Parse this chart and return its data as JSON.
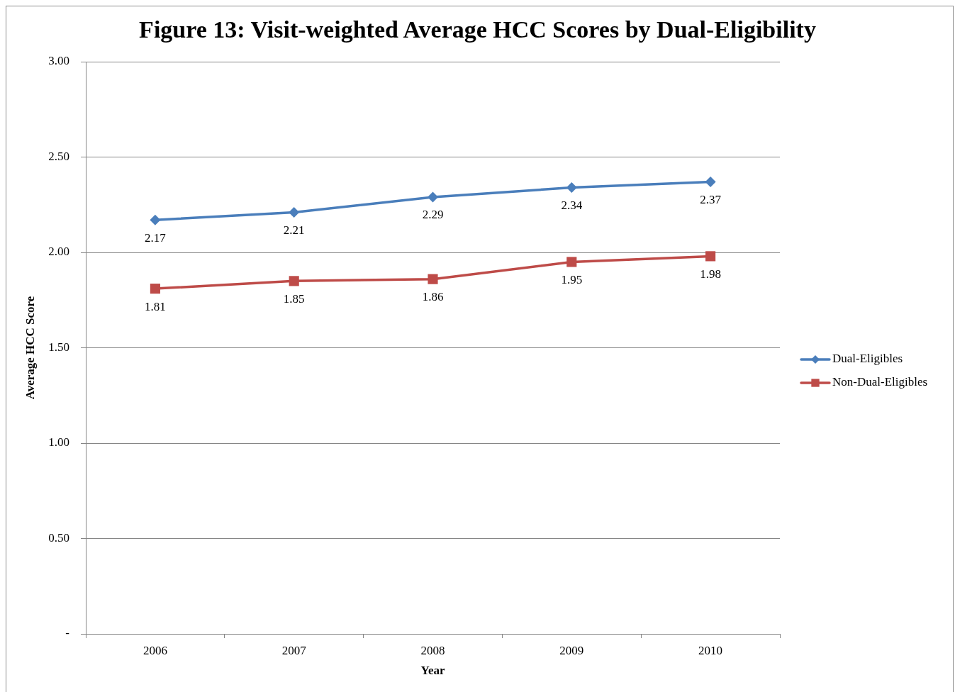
{
  "chart_data": {
    "type": "line",
    "title": "Figure 13: Visit-weighted Average HCC Scores by Dual-Eligibility",
    "xlabel": "Year",
    "ylabel": "Average HCC Score",
    "categories": [
      "2006",
      "2007",
      "2008",
      "2009",
      "2010"
    ],
    "series": [
      {
        "name": "Dual-Eligibles",
        "color": "#4a7ebb",
        "marker": "diamond",
        "values": [
          2.17,
          2.21,
          2.29,
          2.34,
          2.37
        ]
      },
      {
        "name": "Non-Dual-Eligibles",
        "color": "#be4b48",
        "marker": "square",
        "values": [
          1.81,
          1.85,
          1.86,
          1.95,
          1.98
        ]
      }
    ],
    "ylim": [
      0,
      3
    ],
    "yticks": [
      {
        "value": 0,
        "label": "-"
      },
      {
        "value": 0.5,
        "label": "0.50"
      },
      {
        "value": 1,
        "label": "1.00"
      },
      {
        "value": 1.5,
        "label": "1.50"
      },
      {
        "value": 2,
        "label": "2.00"
      },
      {
        "value": 2.5,
        "label": "2.50"
      },
      {
        "value": 3,
        "label": "3.00"
      }
    ],
    "grid": "y",
    "legend": "right",
    "data_labels": true,
    "line_style": "solid"
  }
}
